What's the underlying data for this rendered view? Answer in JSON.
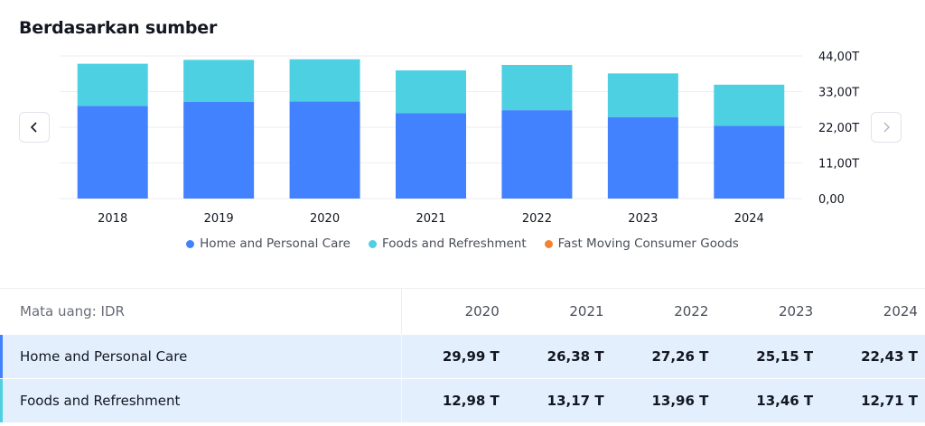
{
  "title": "Berdasarkan sumber",
  "nav": {
    "prev_icon": "chevron-left-icon",
    "next_icon": "chevron-right-icon"
  },
  "colors": {
    "home": "#4382ff",
    "foods": "#4dd0e1",
    "fmcg": "#f4832d",
    "grid": "#eceef2"
  },
  "chart_data": {
    "type": "bar",
    "stacked": true,
    "categories": [
      "2018",
      "2019",
      "2020",
      "2021",
      "2022",
      "2023",
      "2024"
    ],
    "series": [
      {
        "name": "Home and Personal Care",
        "values": [
          28.6,
          29.8,
          29.99,
          26.38,
          27.26,
          25.15,
          22.43
        ]
      },
      {
        "name": "Foods and Refreshment",
        "values": [
          13.0,
          13.0,
          12.98,
          13.17,
          13.96,
          13.46,
          12.71
        ]
      },
      {
        "name": "Fast Moving Consumer Goods",
        "values": [
          0,
          0,
          0,
          0,
          0,
          0,
          0
        ]
      }
    ],
    "yticks": [
      "0,00",
      "11,00T",
      "22,00T",
      "33,00T",
      "44,00T"
    ],
    "ylim": [
      0,
      44
    ],
    "y_axis_side": "right",
    "grid": true,
    "legend_position": "bottom"
  },
  "legend": [
    {
      "label": "Home and Personal Care",
      "color": "#4382ff"
    },
    {
      "label": "Foods and Refreshment",
      "color": "#4dd0e1"
    },
    {
      "label": "Fast Moving Consumer Goods",
      "color": "#f4832d"
    }
  ],
  "table": {
    "currency_label": "Mata uang: IDR",
    "years": [
      "2020",
      "2021",
      "2022",
      "2023",
      "2024"
    ],
    "rows": [
      {
        "name": "Home and Personal Care",
        "color": "#4382ff",
        "values": [
          "29,99 T",
          "26,38 T",
          "27,26 T",
          "25,15 T",
          "22,43 T"
        ]
      },
      {
        "name": "Foods and Refreshment",
        "color": "#4dd0e1",
        "values": [
          "12,98 T",
          "13,17 T",
          "13,96 T",
          "13,46 T",
          "12,71 T"
        ]
      }
    ]
  }
}
